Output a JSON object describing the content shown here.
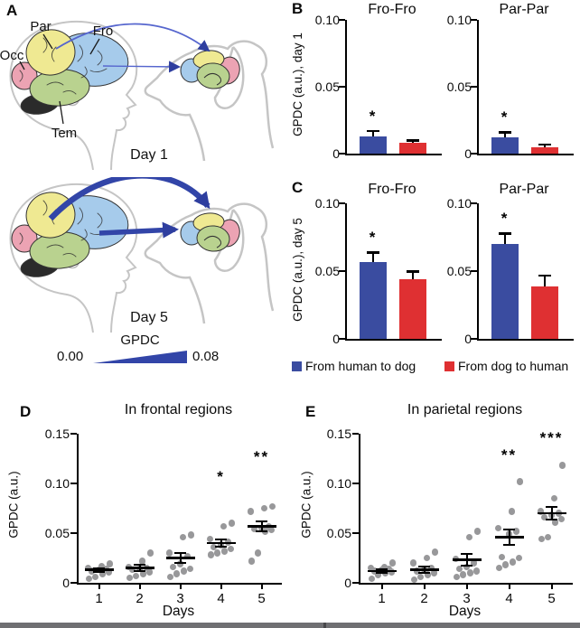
{
  "panel_a": {
    "label": "A",
    "regions": {
      "par": "Par",
      "fro": "Fro",
      "occ": "Occ",
      "tem": "Tem"
    },
    "day1": "Day 1",
    "day5": "Day 5",
    "scale": {
      "title": "GPDC",
      "min": "0.00",
      "max": "0.08"
    }
  },
  "panel_b": {
    "label": "B"
  },
  "panel_c": {
    "label": "C"
  },
  "panel_d": {
    "label": "D"
  },
  "panel_e": {
    "label": "E"
  },
  "legend": {
    "items": [
      {
        "label": "From human to dog",
        "color": "#3A4CA0"
      },
      {
        "label": "From dog to human",
        "color": "#DF3032"
      }
    ]
  },
  "colors": {
    "bar_blue": "#3A4CA0",
    "bar_red": "#DF3032",
    "scatter_gray": "#98989A",
    "arrow_blue_day1": "#5666CE",
    "arrow_blue_day5": "#3245A8",
    "brain_parietal_yellow": "#EFE992",
    "brain_frontal_blue": "#A6CBEB",
    "brain_occipital_pink": "#ECA3B3",
    "brain_temporal_green": "#B9D28F",
    "brain_black_region": "#2B2B2B"
  },
  "chart_data": [
    {
      "id": "B-fro-fro",
      "type": "bar",
      "title": "Fro-Fro",
      "ylabel": "GPDC (a.u.), day 1",
      "ylim": [
        0,
        0.1
      ],
      "yticks": [
        0,
        0.05,
        0.1
      ],
      "ytick_labels": [
        "0",
        "0.05",
        "0.10"
      ],
      "series": [
        {
          "name": "From human to dog",
          "color": "#3A4CA0",
          "value": 0.013,
          "sem": 0.004,
          "sig": "*"
        },
        {
          "name": "From dog to human",
          "color": "#DF3032",
          "value": 0.008,
          "sem": 0.002,
          "sig": ""
        }
      ]
    },
    {
      "id": "B-par-par",
      "type": "bar",
      "title": "Par-Par",
      "ylabel": "GPDC (a.u.), day 1",
      "ylim": [
        0,
        0.1
      ],
      "yticks": [
        0,
        0.05,
        0.1
      ],
      "ytick_labels": [
        "0",
        "0.05",
        "0.10"
      ],
      "series": [
        {
          "name": "From human to dog",
          "color": "#3A4CA0",
          "value": 0.012,
          "sem": 0.004,
          "sig": "*"
        },
        {
          "name": "From dog to human",
          "color": "#DF3032",
          "value": 0.005,
          "sem": 0.002,
          "sig": ""
        }
      ]
    },
    {
      "id": "C-fro-fro",
      "type": "bar",
      "title": "Fro-Fro",
      "ylabel": "GPDC (a.u.), day 5",
      "ylim": [
        0,
        0.1
      ],
      "yticks": [
        0,
        0.05,
        0.1
      ],
      "ytick_labels": [
        "0",
        "0.05",
        "0.10"
      ],
      "series": [
        {
          "name": "From human to dog",
          "color": "#3A4CA0",
          "value": 0.057,
          "sem": 0.007,
          "sig": "*"
        },
        {
          "name": "From dog to human",
          "color": "#DF3032",
          "value": 0.044,
          "sem": 0.006,
          "sig": ""
        }
      ]
    },
    {
      "id": "C-par-par",
      "type": "bar",
      "title": "Par-Par",
      "ylabel": "GPDC (a.u.), day 5",
      "ylim": [
        0,
        0.1
      ],
      "yticks": [
        0,
        0.05,
        0.1
      ],
      "ytick_labels": [
        "0",
        "0.05",
        "0.10"
      ],
      "series": [
        {
          "name": "From human to dog",
          "color": "#3A4CA0",
          "value": 0.07,
          "sem": 0.008,
          "sig": "*"
        },
        {
          "name": "From dog to human",
          "color": "#DF3032",
          "value": 0.039,
          "sem": 0.008,
          "sig": ""
        }
      ]
    },
    {
      "id": "D-frontal",
      "type": "scatter",
      "title": "In frontal regions",
      "xlabel": "Days",
      "ylabel": "GPDC (a.u.)",
      "ylim": [
        0,
        0.15
      ],
      "yticks": [
        0,
        0.05,
        0.1,
        0.15
      ],
      "ytick_labels": [
        "0",
        "0.05",
        "0.10",
        "0.15"
      ],
      "groups": [
        {
          "day": "1",
          "points": [
            0.004,
            0.006,
            0.009,
            0.011,
            0.012,
            0.013,
            0.014,
            0.015,
            0.017,
            0.019
          ],
          "mean": 0.013,
          "sem": 0.002,
          "sig": "",
          "sig_y": 0
        },
        {
          "day": "2",
          "points": [
            0.005,
            0.007,
            0.009,
            0.011,
            0.013,
            0.014,
            0.015,
            0.016,
            0.022,
            0.03
          ],
          "mean": 0.015,
          "sem": 0.003,
          "sig": "",
          "sig_y": 0
        },
        {
          "day": "3",
          "points": [
            0.006,
            0.009,
            0.012,
            0.014,
            0.016,
            0.019,
            0.027,
            0.03,
            0.046,
            0.048
          ],
          "mean": 0.025,
          "sem": 0.005,
          "sig": "",
          "sig_y": 0
        },
        {
          "day": "4",
          "points": [
            0.028,
            0.03,
            0.032,
            0.034,
            0.036,
            0.038,
            0.041,
            0.044,
            0.057,
            0.06
          ],
          "mean": 0.04,
          "sem": 0.004,
          "sig": "*",
          "sig_y": 0.108
        },
        {
          "day": "5",
          "points": [
            0.022,
            0.03,
            0.052,
            0.053,
            0.054,
            0.055,
            0.057,
            0.072,
            0.075,
            0.077
          ],
          "mean": 0.057,
          "sem": 0.005,
          "sig": "**",
          "sig_y": 0.128
        }
      ]
    },
    {
      "id": "E-parietal",
      "type": "scatter",
      "title": "In parietal regions",
      "xlabel": "Days",
      "ylabel": "GPDC (a.u.)",
      "ylim": [
        0,
        0.15
      ],
      "yticks": [
        0,
        0.05,
        0.1,
        0.15
      ],
      "ytick_labels": [
        "0",
        "0.05",
        "0.10",
        "0.15"
      ],
      "groups": [
        {
          "day": "1",
          "points": [
            0.004,
            0.008,
            0.01,
            0.011,
            0.012,
            0.013,
            0.014,
            0.015,
            0.016,
            0.02
          ],
          "mean": 0.012,
          "sem": 0.002,
          "sig": "",
          "sig_y": 0
        },
        {
          "day": "2",
          "points": [
            0.003,
            0.006,
            0.008,
            0.01,
            0.012,
            0.013,
            0.015,
            0.02,
            0.025,
            0.031
          ],
          "mean": 0.013,
          "sem": 0.003,
          "sig": "",
          "sig_y": 0
        },
        {
          "day": "3",
          "points": [
            0.006,
            0.008,
            0.01,
            0.012,
            0.014,
            0.016,
            0.02,
            0.024,
            0.046,
            0.052
          ],
          "mean": 0.023,
          "sem": 0.006,
          "sig": "",
          "sig_y": 0
        },
        {
          "day": "4",
          "points": [
            0.015,
            0.018,
            0.021,
            0.025,
            0.026,
            0.049,
            0.052,
            0.055,
            0.072,
            0.102
          ],
          "mean": 0.046,
          "sem": 0.008,
          "sig": "**",
          "sig_y": 0.13
        },
        {
          "day": "5",
          "points": [
            0.044,
            0.046,
            0.061,
            0.064,
            0.066,
            0.068,
            0.07,
            0.072,
            0.085,
            0.118
          ],
          "mean": 0.07,
          "sem": 0.006,
          "sig": "***",
          "sig_y": 0.147
        }
      ]
    }
  ]
}
